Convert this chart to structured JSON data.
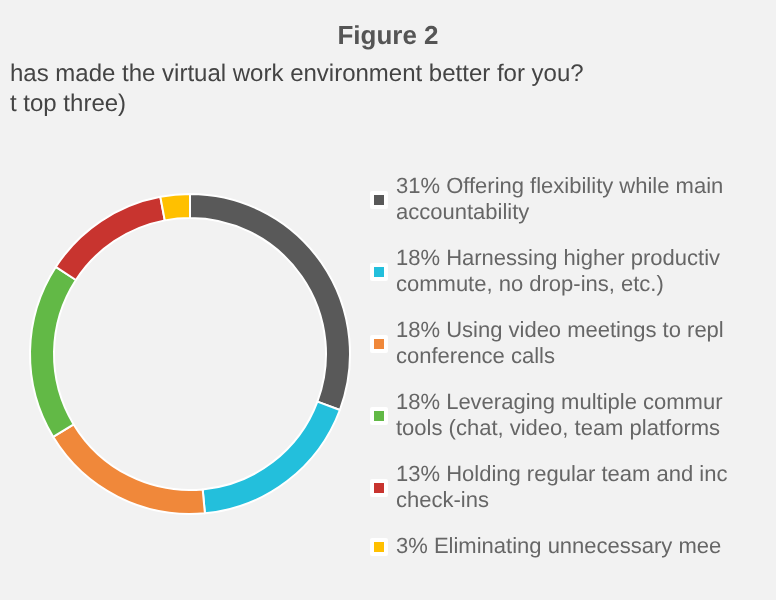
{
  "chart_data": {
    "type": "donut",
    "title": "Figure 2",
    "subtitle": "has made the virtual work environment better for you?\nt top three)",
    "categories": [
      "31% Offering flexibility while main\naccountability",
      "18% Harnessing higher productiv\ncommute, no drop-ins, etc.)",
      "18% Using video meetings to repl\nconference calls",
      "18% Leveraging multiple commur\ntools (chat, video, team platforms",
      "13% Holding regular team and inc\ncheck-ins",
      "3% Eliminating unnecessary mee"
    ],
    "values": [
      31,
      18,
      18,
      18,
      13,
      3
    ],
    "colors": [
      "#595959",
      "#23bfdc",
      "#f0883a",
      "#62b946",
      "#c8342f",
      "#ffc000"
    ],
    "legend": "right"
  }
}
